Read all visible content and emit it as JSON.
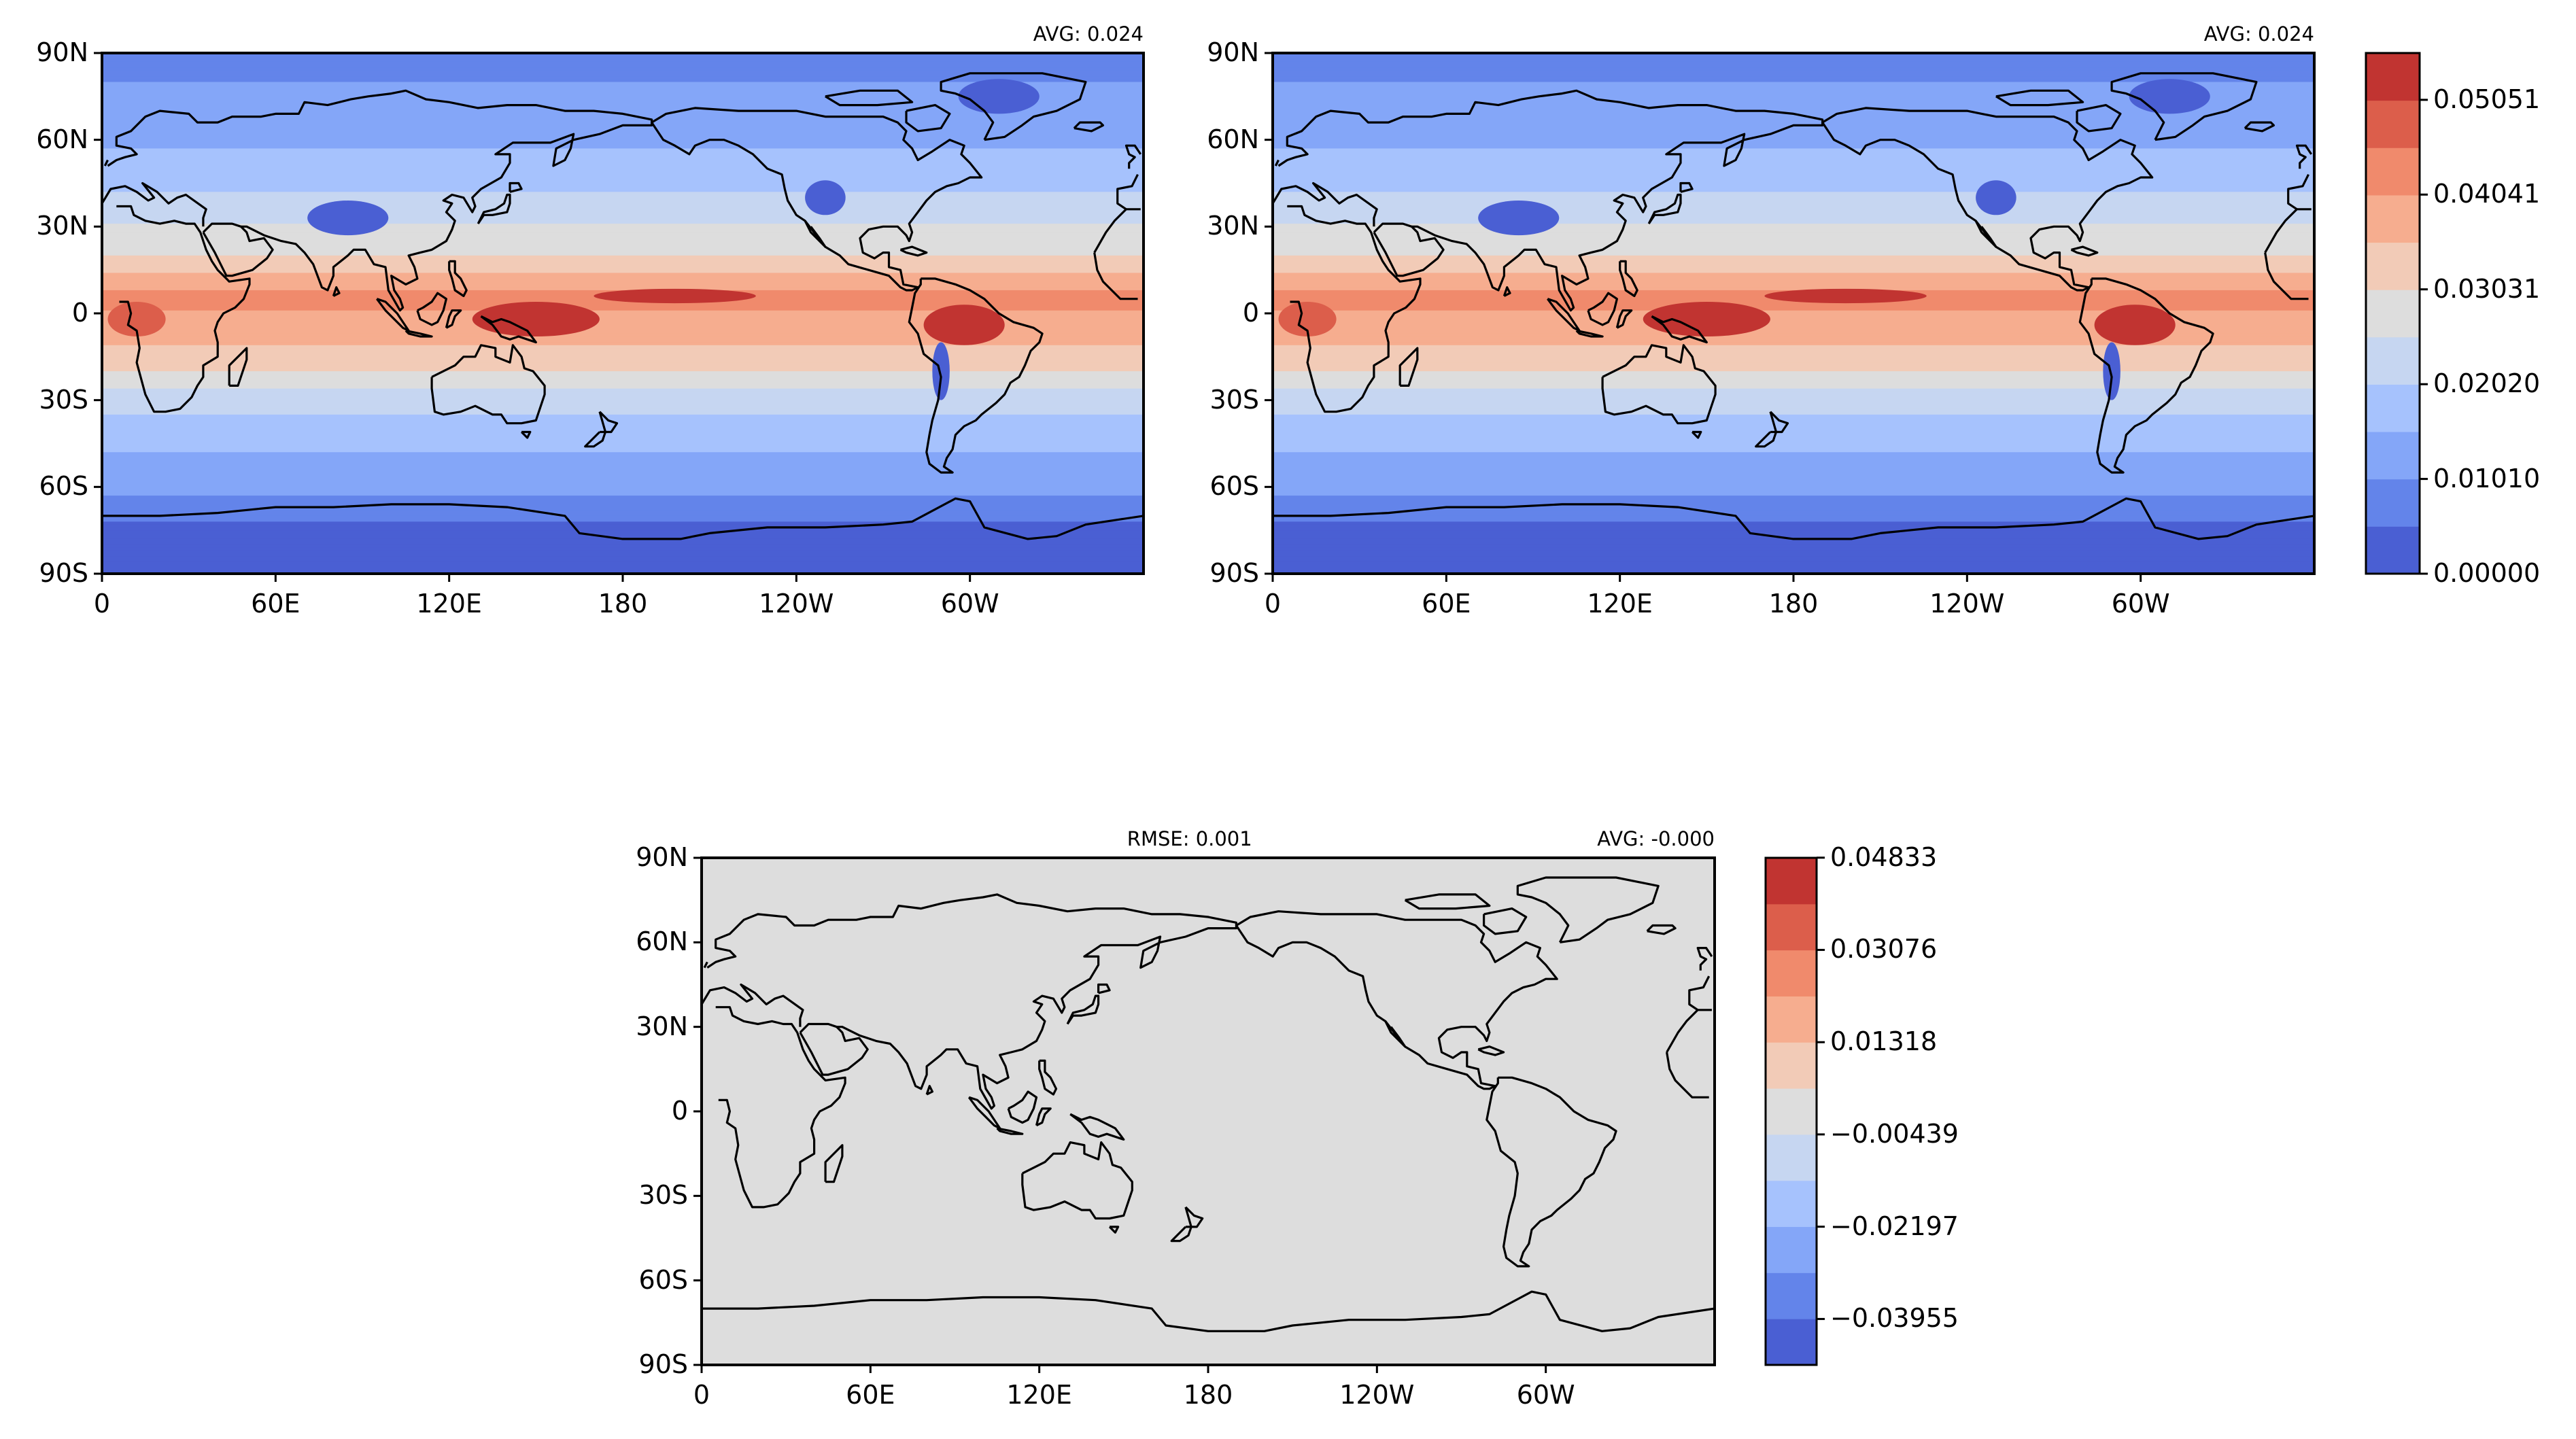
{
  "panels": [
    {
      "id": "top-left",
      "left_title": "",
      "right_title": "AVG: 0.024",
      "field": "base",
      "colorbar": null
    },
    {
      "id": "top-right",
      "left_title": "",
      "right_title": "AVG: 0.024",
      "field": "base",
      "colorbar": "main"
    },
    {
      "id": "bottom",
      "left_title": "RMSE: 0.001",
      "right_title": "AVG: -0.000",
      "field": "difference",
      "colorbar": "diff"
    }
  ],
  "axes": {
    "lat_ticks": [
      "90N",
      "60N",
      "30N",
      "0",
      "30S",
      "60S",
      "90S"
    ],
    "lon_ticks": [
      "0",
      "60E",
      "120E",
      "180",
      "120W",
      "60W"
    ]
  },
  "colorbars": {
    "main": {
      "tick_labels": [
        "0.00000",
        "0.01010",
        "0.02020",
        "0.03031",
        "0.04041",
        "0.05051"
      ],
      "range": [
        0.0,
        0.0555
      ]
    },
    "diff": {
      "tick_labels": [
        "−0.03955",
        "−0.02197",
        "−0.00439",
        "0.01318",
        "0.03076",
        "0.04833"
      ],
      "range": [
        -0.0483,
        0.0483
      ]
    }
  },
  "colors": {
    "levels": [
      "#4a5fd3",
      "#6384ea",
      "#84a6f8",
      "#a6c2fd",
      "#c6d6f1",
      "#dddddd",
      "#f2cbb7",
      "#f6ad8f",
      "#f08a6c",
      "#dc5e4b",
      "#c13431"
    ],
    "frame": "#000000",
    "coastline": "#000000"
  },
  "chart_data": [
    {
      "type": "heatmap",
      "title": "AVG: 0.024",
      "xlabel": "",
      "ylabel": "",
      "xlim": [
        0,
        360
      ],
      "ylim": [
        -90,
        90
      ],
      "field_by_latitude": {
        "lat": [
          80,
          60,
          40,
          20,
          10,
          5,
          0,
          -5,
          -10,
          -20,
          -30,
          -45,
          -60,
          -75
        ],
        "value": [
          0.01,
          0.014,
          0.021,
          0.03,
          0.039,
          0.042,
          0.04,
          0.039,
          0.036,
          0.03,
          0.022,
          0.016,
          0.012,
          0.003
        ]
      },
      "colorbar_ticks": [
        0.0,
        0.0101,
        0.0202,
        0.03031,
        0.04041,
        0.05051
      ]
    },
    {
      "type": "heatmap",
      "title": "AVG: 0.024",
      "xlabel": "",
      "ylabel": "",
      "xlim": [
        0,
        360
      ],
      "ylim": [
        -90,
        90
      ],
      "field_by_latitude": {
        "lat": [
          80,
          60,
          40,
          20,
          10,
          5,
          0,
          -5,
          -10,
          -20,
          -30,
          -45,
          -60,
          -75
        ],
        "value": [
          0.01,
          0.014,
          0.021,
          0.03,
          0.039,
          0.042,
          0.04,
          0.039,
          0.036,
          0.03,
          0.022,
          0.016,
          0.012,
          0.003
        ]
      },
      "colorbar_ticks": [
        0.0,
        0.0101,
        0.0202,
        0.03031,
        0.04041,
        0.05051
      ]
    },
    {
      "type": "heatmap",
      "title": "RMSE: 0.001",
      "xlabel": "",
      "ylabel": "",
      "xlim": [
        0,
        360
      ],
      "ylim": [
        -90,
        90
      ],
      "field_by_latitude": {
        "lat": [
          90,
          -90
        ],
        "value": [
          0.0,
          0.0
        ]
      },
      "colorbar_ticks": [
        -0.03955,
        -0.02197,
        -0.00439,
        0.01318,
        0.03076,
        0.04833
      ]
    }
  ]
}
